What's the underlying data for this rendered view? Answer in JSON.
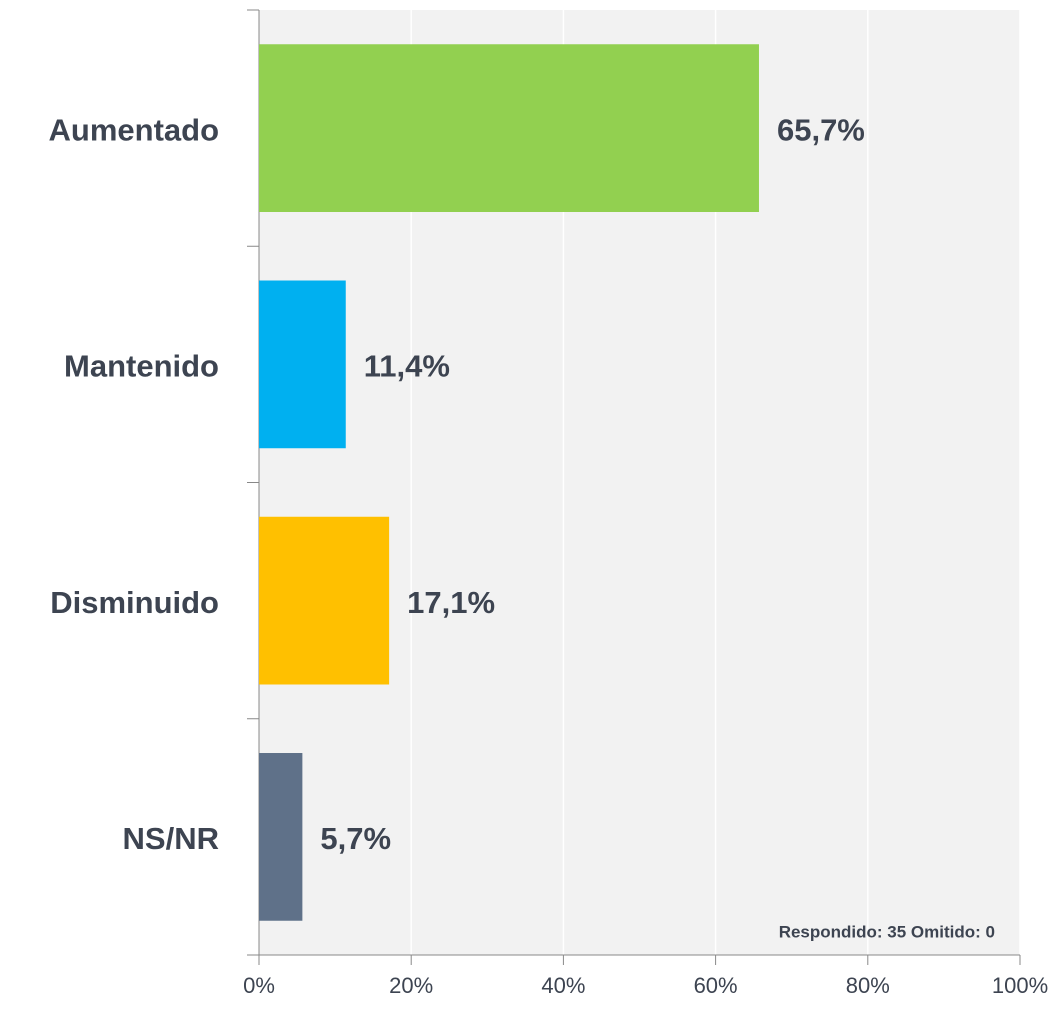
{
  "chart_data": {
    "type": "bar",
    "orientation": "horizontal",
    "categories": [
      "Aumentado",
      "Mantenido",
      "Disminuido",
      "NS/NR"
    ],
    "values": [
      65.7,
      11.4,
      17.1,
      5.7
    ],
    "value_labels": [
      "65,7%",
      "11,4%",
      "17,1%",
      "5,7%"
    ],
    "colors": [
      "#92d050",
      "#00b0f0",
      "#ffc000",
      "#5f7189"
    ],
    "xlim": [
      0,
      100
    ],
    "xticks": [
      {
        "value": 0,
        "label": "0%"
      },
      {
        "value": 20,
        "label": "20%"
      },
      {
        "value": 40,
        "label": "40%"
      },
      {
        "value": 60,
        "label": "60%"
      },
      {
        "value": 80,
        "label": "80%"
      },
      {
        "value": 100,
        "label": "100%"
      }
    ],
    "grid": true,
    "annotation": "Respondido: 35 Omitido: 0"
  }
}
